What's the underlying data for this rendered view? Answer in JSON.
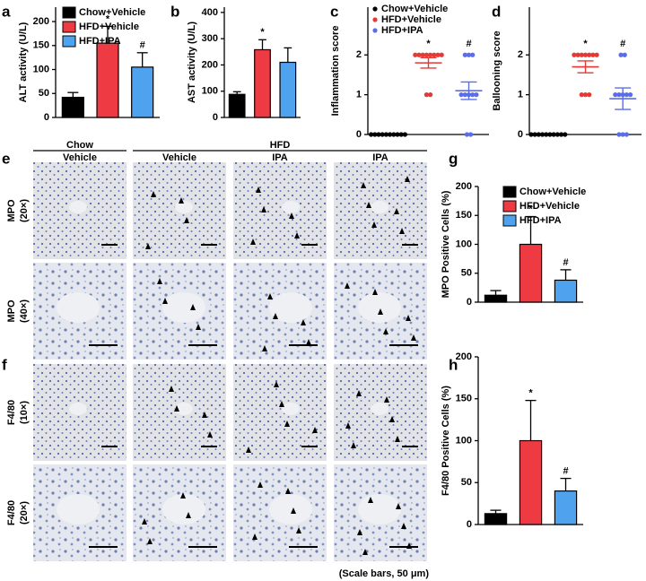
{
  "panel_labels": [
    "a",
    "b",
    "c",
    "d",
    "e",
    "f",
    "g",
    "h"
  ],
  "micrographs": {
    "group_headers": [
      "Chow",
      "HFD"
    ],
    "columns": [
      "Vehicle",
      "Vehicle",
      "IPA",
      "IPA"
    ],
    "rows": [
      {
        "stain": "MPO",
        "magnification": "(20×)"
      },
      {
        "stain": "MPO",
        "magnification": "(40×)"
      },
      {
        "stain": "F4/80",
        "magnification": "(10×)"
      },
      {
        "stain": "F4/80",
        "magnification": "(20×)"
      }
    ],
    "note": "(Scale bars, 50 μm)"
  },
  "chart_data": [
    {
      "type": "bar",
      "ylabel": "ALT activity (U/L)",
      "categories": [
        "Chow+Vehicle",
        "HFD+Vehicle",
        "HFD+IPA"
      ],
      "colors": [
        "#000000",
        "#ee3b43",
        "#4fa3ee"
      ],
      "values": [
        42,
        155,
        105
      ],
      "errors": [
        10,
        35,
        30
      ],
      "annotations": [
        null,
        "*",
        "#"
      ],
      "ylim": [
        0,
        230
      ],
      "yticks": [
        0,
        50,
        100,
        150,
        200
      ],
      "legend": "upper left"
    },
    {
      "type": "bar",
      "ylabel": "AST activity (U/L)",
      "colors": [
        "#000000",
        "#ee3b43",
        "#4fa3ee"
      ],
      "values": [
        88,
        258,
        210
      ],
      "errors": [
        10,
        38,
        55
      ],
      "annotations": [
        null,
        "*",
        null
      ],
      "ylim": [
        0,
        420
      ],
      "yticks": [
        0,
        100,
        200,
        300,
        400
      ]
    },
    {
      "type": "strip",
      "ylabel": "Inflammation score",
      "series": [
        {
          "name": "Chow+Vehicle",
          "color": "#000000",
          "values": [
            0,
            0,
            0,
            0,
            0,
            0,
            0,
            0,
            0,
            0
          ],
          "mean": 0,
          "error": 0
        },
        {
          "name": "HFD+Vehicle",
          "color": "#e53935",
          "values": [
            2,
            2,
            2,
            2,
            2,
            2,
            2,
            2,
            1,
            1
          ],
          "mean": 1.8,
          "error": 0.13,
          "annotation": "*"
        },
        {
          "name": "HFD+IPA",
          "color": "#5b6ee8",
          "values": [
            2,
            2,
            2,
            1,
            1,
            1,
            1,
            1,
            0,
            0
          ],
          "mean": 1.1,
          "error": 0.22,
          "annotation": "#"
        }
      ],
      "ylim": [
        0,
        3.2
      ],
      "yticks": [
        0,
        1,
        2
      ],
      "legend": "upper left"
    },
    {
      "type": "strip",
      "ylabel": "Ballooning score",
      "series": [
        {
          "color": "#000000",
          "values": [
            0,
            0,
            0,
            0,
            0,
            0,
            0,
            0,
            0,
            0
          ],
          "mean": 0,
          "error": 0
        },
        {
          "color": "#e53935",
          "values": [
            2,
            2,
            2,
            2,
            2,
            2,
            2,
            1,
            1,
            1
          ],
          "mean": 1.7,
          "error": 0.15,
          "annotation": "*"
        },
        {
          "color": "#5b6ee8",
          "values": [
            2,
            2,
            1,
            1,
            1,
            1,
            1,
            0,
            0,
            0
          ],
          "mean": 0.9,
          "error": 0.27,
          "annotation": "#"
        }
      ],
      "ylim": [
        0,
        3.2
      ],
      "yticks": [
        0,
        1,
        2
      ]
    },
    {
      "type": "bar",
      "ylabel": "MPO Positive Cells (%)",
      "categories": [
        "Chow+Vehicle",
        "HFD+Vehicle",
        "HFD+IPA"
      ],
      "colors": [
        "#000000",
        "#ee3b43",
        "#4fa3ee"
      ],
      "values": [
        12,
        100,
        38
      ],
      "errors": [
        8,
        48,
        18
      ],
      "annotations": [
        null,
        "*",
        "#"
      ],
      "ylim": [
        0,
        200
      ],
      "yticks": [
        0,
        50,
        100,
        150,
        200
      ],
      "legend": "upper right"
    },
    {
      "type": "bar",
      "ylabel": "F4/80 Positive Cells (%)",
      "colors": [
        "#000000",
        "#ee3b43",
        "#4fa3ee"
      ],
      "values": [
        13,
        100,
        40
      ],
      "errors": [
        4,
        48,
        15
      ],
      "annotations": [
        null,
        "*",
        "#"
      ],
      "ylim": [
        0,
        200
      ],
      "yticks": [
        0,
        50,
        100,
        150,
        200
      ]
    }
  ]
}
